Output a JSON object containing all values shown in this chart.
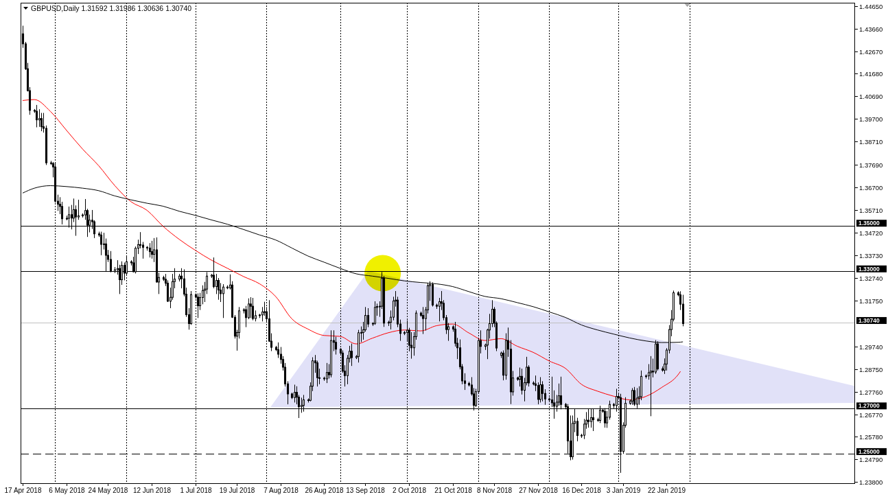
{
  "chart_data": {
    "type": "candlestick",
    "title": "GBPUSD,Daily 1.31592 1.31986 1.30636 1.30740",
    "x": [
      "2018-04-17",
      "2018-04-18",
      "2018-04-19",
      "2018-04-20",
      "2018-04-22",
      "2018-04-23",
      "2018-04-24",
      "2018-04-25",
      "2018-04-26",
      "2018-04-27",
      "2018-04-29",
      "2018-04-30",
      "2018-05-01",
      "2018-05-02",
      "2018-05-03",
      "2018-05-04",
      "2018-05-06",
      "2018-05-07",
      "2018-05-08",
      "2018-05-09",
      "2018-05-10",
      "2018-05-11",
      "2018-05-13",
      "2018-05-14",
      "2018-05-15",
      "2018-05-16",
      "2018-05-17",
      "2018-05-18",
      "2018-05-20",
      "2018-05-21",
      "2018-05-22",
      "2018-05-23",
      "2018-05-24",
      "2018-05-25",
      "2018-05-27",
      "2018-05-28",
      "2018-05-29",
      "2018-05-30",
      "2018-05-31",
      "2018-06-01",
      "2018-06-03",
      "2018-06-04",
      "2018-06-05",
      "2018-06-06",
      "2018-06-07",
      "2018-06-08",
      "2018-06-10",
      "2018-06-11",
      "2018-06-12",
      "2018-06-13",
      "2018-06-14",
      "2018-06-15",
      "2018-06-17",
      "2018-06-18",
      "2018-06-19",
      "2018-06-20",
      "2018-06-21",
      "2018-06-22",
      "2018-06-24",
      "2018-06-25",
      "2018-06-26",
      "2018-06-27",
      "2018-06-28",
      "2018-06-29",
      "2018-07-01",
      "2018-07-02",
      "2018-07-03",
      "2018-07-04",
      "2018-07-05",
      "2018-07-06",
      "2018-07-08",
      "2018-07-09",
      "2018-07-10",
      "2018-07-11",
      "2018-07-12",
      "2018-07-13",
      "2018-07-15",
      "2018-07-16",
      "2018-07-17",
      "2018-07-18",
      "2018-07-19",
      "2018-07-20",
      "2018-07-22",
      "2018-07-23",
      "2018-07-24",
      "2018-07-25",
      "2018-07-26",
      "2018-07-27",
      "2018-07-29",
      "2018-07-30",
      "2018-07-31",
      "2018-08-01",
      "2018-08-02",
      "2018-08-03",
      "2018-08-05",
      "2018-08-06",
      "2018-08-07",
      "2018-08-08",
      "2018-08-09",
      "2018-08-10",
      "2018-08-12",
      "2018-08-13",
      "2018-08-14",
      "2018-08-15",
      "2018-08-16",
      "2018-08-17",
      "2018-08-19",
      "2018-08-20",
      "2018-08-21",
      "2018-08-22",
      "2018-08-23",
      "2018-08-24",
      "2018-08-26",
      "2018-08-27",
      "2018-08-28",
      "2018-08-29",
      "2018-08-30",
      "2018-08-31",
      "2018-09-02",
      "2018-09-03",
      "2018-09-04",
      "2018-09-05",
      "2018-09-06",
      "2018-09-07",
      "2018-09-09",
      "2018-09-10",
      "2018-09-11",
      "2018-09-12",
      "2018-09-13",
      "2018-09-14",
      "2018-09-16",
      "2018-09-17",
      "2018-09-18",
      "2018-09-19",
      "2018-09-20",
      "2018-09-21",
      "2018-09-23",
      "2018-09-24",
      "2018-09-25",
      "2018-09-26",
      "2018-09-27",
      "2018-09-28",
      "2018-09-30",
      "2018-10-01",
      "2018-10-02",
      "2018-10-03",
      "2018-10-04",
      "2018-10-05",
      "2018-10-07",
      "2018-10-08",
      "2018-10-09",
      "2018-10-10",
      "2018-10-11",
      "2018-10-12",
      "2018-10-14",
      "2018-10-15",
      "2018-10-16",
      "2018-10-17",
      "2018-10-18",
      "2018-10-19",
      "2018-10-21",
      "2018-10-22",
      "2018-10-23",
      "2018-10-24",
      "2018-10-25",
      "2018-10-26",
      "2018-10-28",
      "2018-10-29",
      "2018-10-30",
      "2018-10-31",
      "2018-11-01",
      "2018-11-02",
      "2018-11-04",
      "2018-11-05",
      "2018-11-06",
      "2018-11-07",
      "2018-11-08",
      "2018-11-09",
      "2018-11-11",
      "2018-11-12",
      "2018-11-13",
      "2018-11-14",
      "2018-11-15",
      "2018-11-16",
      "2018-11-18",
      "2018-11-19",
      "2018-11-20",
      "2018-11-21",
      "2018-11-22",
      "2018-11-23",
      "2018-11-25",
      "2018-11-26",
      "2018-11-27",
      "2018-11-28",
      "2018-11-29",
      "2018-11-30",
      "2018-12-02",
      "2018-12-03",
      "2018-12-04",
      "2018-12-05",
      "2018-12-06",
      "2018-12-07",
      "2018-12-09",
      "2018-12-10",
      "2018-12-11",
      "2018-12-12",
      "2018-12-13",
      "2018-12-14",
      "2018-12-16",
      "2018-12-17",
      "2018-12-18",
      "2018-12-19",
      "2018-12-20",
      "2018-12-21",
      "2018-12-23",
      "2018-12-24",
      "2018-12-25",
      "2018-12-26",
      "2018-12-27",
      "2018-12-28",
      "2018-12-30",
      "2018-12-31",
      "2019-01-01",
      "2019-01-02",
      "2019-01-03",
      "2019-01-04",
      "2019-01-06",
      "2019-01-07",
      "2019-01-08",
      "2019-01-09",
      "2019-01-10",
      "2019-01-11",
      "2019-01-13",
      "2019-01-14",
      "2019-01-15",
      "2019-01-16",
      "2019-01-17",
      "2019-01-18",
      "2019-01-20",
      "2019-01-21",
      "2019-01-22",
      "2019-01-23",
      "2019-01-24",
      "2019-01-25",
      "2019-01-27",
      "2019-01-28",
      "2019-01-29"
    ],
    "ohlc": [
      [
        1.4343,
        1.4377,
        1.4283,
        1.4299
      ],
      [
        1.4299,
        1.4306,
        1.4186,
        1.419
      ],
      [
        1.419,
        1.4214,
        1.4092,
        1.4094
      ],
      [
        1.4094,
        1.4108,
        1.399,
        1.4008
      ],
      [
        1.4008,
        1.4012,
        1.3998,
        1.4004
      ],
      [
        1.4004,
        1.403,
        1.3935,
        1.3966
      ],
      [
        1.3966,
        1.4011,
        1.3937,
        1.3972
      ],
      [
        1.3972,
        1.3995,
        1.3918,
        1.3936
      ],
      [
        1.3936,
        1.3995,
        1.3912,
        1.3929
      ],
      [
        1.3929,
        1.394,
        1.377,
        1.3778
      ],
      [
        1.3778,
        1.3785,
        1.377,
        1.3775
      ],
      [
        1.3775,
        1.378,
        1.3716,
        1.376
      ],
      [
        1.376,
        1.3775,
        1.3605,
        1.361
      ],
      [
        1.361,
        1.3637,
        1.3569,
        1.3597
      ],
      [
        1.3597,
        1.3626,
        1.3555,
        1.3587
      ],
      [
        1.3587,
        1.3606,
        1.351,
        1.3533
      ],
      [
        1.3533,
        1.3545,
        1.3528,
        1.3535
      ],
      [
        1.3535,
        1.3585,
        1.3496,
        1.3551
      ],
      [
        1.3551,
        1.3592,
        1.3488,
        1.3536
      ],
      [
        1.3536,
        1.362,
        1.352,
        1.3573
      ],
      [
        1.3573,
        1.359,
        1.346,
        1.3541
      ],
      [
        1.3541,
        1.3615,
        1.353,
        1.3546
      ],
      [
        1.3546,
        1.3555,
        1.354,
        1.355
      ],
      [
        1.355,
        1.3618,
        1.353,
        1.3569
      ],
      [
        1.3569,
        1.3575,
        1.3455,
        1.3505
      ],
      [
        1.3505,
        1.355,
        1.3475,
        1.3527
      ],
      [
        1.3527,
        1.357,
        1.349,
        1.352
      ],
      [
        1.352,
        1.3525,
        1.345,
        1.3467
      ],
      [
        1.3467,
        1.3475,
        1.3455,
        1.3462
      ],
      [
        1.3462,
        1.3475,
        1.3375,
        1.3421
      ],
      [
        1.3421,
        1.347,
        1.34,
        1.3423
      ],
      [
        1.3423,
        1.3445,
        1.3305,
        1.3373
      ],
      [
        1.3373,
        1.3395,
        1.3345,
        1.3355
      ],
      [
        1.3355,
        1.339,
        1.33,
        1.3303
      ],
      [
        1.3303,
        1.332,
        1.3297,
        1.331
      ],
      [
        1.331,
        1.335,
        1.329,
        1.3315
      ],
      [
        1.3315,
        1.333,
        1.3205,
        1.3266
      ],
      [
        1.3266,
        1.3345,
        1.3245,
        1.3329
      ],
      [
        1.3329,
        1.334,
        1.3265,
        1.3295
      ],
      [
        1.3295,
        1.3366,
        1.329,
        1.3345
      ],
      [
        1.3345,
        1.335,
        1.333,
        1.334
      ],
      [
        1.334,
        1.3365,
        1.33,
        1.3301
      ],
      [
        1.3301,
        1.341,
        1.3295,
        1.3404
      ],
      [
        1.3404,
        1.344,
        1.338,
        1.342
      ],
      [
        1.342,
        1.3473,
        1.3405,
        1.3418
      ],
      [
        1.3418,
        1.343,
        1.336,
        1.3408
      ],
      [
        1.3408,
        1.3412,
        1.3395,
        1.3405
      ],
      [
        1.3405,
        1.3425,
        1.3365,
        1.3389
      ],
      [
        1.3389,
        1.3435,
        1.336,
        1.3377
      ],
      [
        1.3377,
        1.3447,
        1.3345,
        1.3397
      ],
      [
        1.3397,
        1.345,
        1.3255,
        1.3256
      ],
      [
        1.3256,
        1.3295,
        1.3205,
        1.3276
      ],
      [
        1.3276,
        1.3282,
        1.3262,
        1.3268
      ],
      [
        1.3268,
        1.329,
        1.324,
        1.3251
      ],
      [
        1.3251,
        1.3262,
        1.317,
        1.3172
      ],
      [
        1.3172,
        1.323,
        1.3143,
        1.3189
      ],
      [
        1.3189,
        1.329,
        1.318,
        1.3258
      ],
      [
        1.3258,
        1.3315,
        1.323,
        1.3269
      ],
      [
        1.3269,
        1.329,
        1.326,
        1.3282
      ],
      [
        1.3282,
        1.3315,
        1.323,
        1.327
      ],
      [
        1.327,
        1.331,
        1.3195,
        1.3203
      ],
      [
        1.3203,
        1.323,
        1.3105,
        1.3113
      ],
      [
        1.3113,
        1.314,
        1.3049,
        1.3074
      ],
      [
        1.3074,
        1.3215,
        1.307,
        1.3201
      ],
      [
        1.3201,
        1.3205,
        1.3185,
        1.319
      ],
      [
        1.319,
        1.3205,
        1.31,
        1.3152
      ],
      [
        1.3152,
        1.3207,
        1.3135,
        1.3188
      ],
      [
        1.3188,
        1.324,
        1.316,
        1.3219
      ],
      [
        1.3219,
        1.3255,
        1.317,
        1.3225
      ],
      [
        1.3225,
        1.3298,
        1.3205,
        1.3282
      ],
      [
        1.3282,
        1.329,
        1.3275,
        1.3286
      ],
      [
        1.3286,
        1.3362,
        1.323,
        1.3236
      ],
      [
        1.3236,
        1.329,
        1.3205,
        1.3263
      ],
      [
        1.3263,
        1.3272,
        1.318,
        1.3221
      ],
      [
        1.3221,
        1.325,
        1.317,
        1.3205
      ],
      [
        1.3205,
        1.3245,
        1.31,
        1.3234
      ],
      [
        1.3234,
        1.324,
        1.3226,
        1.323
      ],
      [
        1.323,
        1.3288,
        1.3225,
        1.3243
      ],
      [
        1.3243,
        1.3258,
        1.31,
        1.3102
      ],
      [
        1.3102,
        1.311,
        1.301,
        1.3019
      ],
      [
        1.3019,
        1.3045,
        1.2957,
        1.3035
      ],
      [
        1.3035,
        1.3145,
        1.301,
        1.313
      ],
      [
        1.313,
        1.314,
        1.312,
        1.3135
      ],
      [
        1.3135,
        1.315,
        1.306,
        1.31
      ],
      [
        1.31,
        1.3183,
        1.3095,
        1.316
      ],
      [
        1.316,
        1.3188,
        1.31,
        1.315
      ],
      [
        1.315,
        1.3185,
        1.309,
        1.3096
      ],
      [
        1.3096,
        1.313,
        1.3085,
        1.3109
      ],
      [
        1.3109,
        1.3115,
        1.31,
        1.3112
      ],
      [
        1.3112,
        1.3145,
        1.3085,
        1.3125
      ],
      [
        1.3125,
        1.3168,
        1.311,
        1.3126
      ],
      [
        1.3126,
        1.3145,
        1.308,
        1.3095
      ],
      [
        1.3095,
        1.3175,
        1.2995,
        1.2997
      ],
      [
        1.2997,
        1.303,
        1.2955,
        1.297
      ],
      [
        1.297,
        1.2975,
        1.2955,
        1.296
      ],
      [
        1.296,
        1.299,
        1.2925,
        1.294
      ],
      [
        1.294,
        1.297,
        1.29,
        1.2917
      ],
      [
        1.2917,
        1.293,
        1.287,
        1.2883
      ],
      [
        1.2883,
        1.29,
        1.28,
        1.281
      ],
      [
        1.281,
        1.282,
        1.2722,
        1.2766
      ],
      [
        1.2766,
        1.277,
        1.2745,
        1.275
      ],
      [
        1.275,
        1.2805,
        1.273,
        1.2773
      ],
      [
        1.2773,
        1.2798,
        1.2722,
        1.2752
      ],
      [
        1.2752,
        1.276,
        1.2662,
        1.271
      ],
      [
        1.271,
        1.2748,
        1.2685,
        1.2716
      ],
      [
        1.2716,
        1.276,
        1.269,
        1.274
      ],
      [
        1.274,
        1.2745,
        1.273,
        1.2738
      ],
      [
        1.2738,
        1.2815,
        1.2735,
        1.28
      ],
      [
        1.28,
        1.2925,
        1.278,
        1.2911
      ],
      [
        1.2911,
        1.2935,
        1.286,
        1.2902
      ],
      [
        1.2902,
        1.291,
        1.28,
        1.2837
      ],
      [
        1.2837,
        1.2875,
        1.281,
        1.2835
      ],
      [
        1.2835,
        1.284,
        1.2825,
        1.2832
      ],
      [
        1.2832,
        1.29,
        1.2815,
        1.286
      ],
      [
        1.286,
        1.2895,
        1.2835,
        1.285
      ],
      [
        1.285,
        1.3043,
        1.284,
        1.3
      ],
      [
        1.3,
        1.3043,
        1.2955,
        1.2992
      ],
      [
        1.2992,
        1.3015,
        1.294,
        1.2962
      ],
      [
        1.2962,
        1.2965,
        1.294,
        1.2945
      ],
      [
        1.2945,
        1.2955,
        1.286,
        1.2866
      ],
      [
        1.2866,
        1.289,
        1.28,
        1.2846
      ],
      [
        1.2846,
        1.2935,
        1.281,
        1.2922
      ],
      [
        1.2922,
        1.2975,
        1.2905,
        1.2953
      ],
      [
        1.2953,
        1.2985,
        1.289,
        1.2925
      ],
      [
        1.2925,
        1.2935,
        1.292,
        1.293
      ],
      [
        1.293,
        1.3045,
        1.2905,
        1.3034
      ],
      [
        1.3034,
        1.306,
        1.2995,
        1.3035
      ],
      [
        1.3035,
        1.308,
        1.3005,
        1.3047
      ],
      [
        1.3047,
        1.3145,
        1.304,
        1.311
      ],
      [
        1.311,
        1.314,
        1.306,
        1.3072
      ],
      [
        1.3072,
        1.3078,
        1.3065,
        1.3075
      ],
      [
        1.3075,
        1.317,
        1.307,
        1.3145
      ],
      [
        1.3145,
        1.316,
        1.311,
        1.3149
      ],
      [
        1.3149,
        1.317,
        1.3105,
        1.315
      ],
      [
        1.315,
        1.3298,
        1.314,
        1.3273
      ],
      [
        1.3273,
        1.3281,
        1.3061,
        1.3076
      ],
      [
        1.3076,
        1.3085,
        1.3065,
        1.308
      ],
      [
        1.308,
        1.313,
        1.305,
        1.3102
      ],
      [
        1.3102,
        1.319,
        1.309,
        1.3173
      ],
      [
        1.3173,
        1.3215,
        1.315,
        1.3177
      ],
      [
        1.3177,
        1.319,
        1.306,
        1.3072
      ],
      [
        1.3072,
        1.309,
        1.3,
        1.3031
      ],
      [
        1.3031,
        1.304,
        1.3025,
        1.3035
      ],
      [
        1.3035,
        1.3087,
        1.3,
        1.3045
      ],
      [
        1.3045,
        1.3054,
        1.2954,
        1.2979
      ],
      [
        1.2979,
        1.3035,
        1.2922,
        1.2968
      ],
      [
        1.2968,
        1.3035,
        1.2935,
        1.3017
      ],
      [
        1.3017,
        1.313,
        1.3005,
        1.312
      ],
      [
        1.312,
        1.3125,
        1.3105,
        1.311
      ],
      [
        1.311,
        1.3145,
        1.303,
        1.3096
      ],
      [
        1.3096,
        1.3145,
        1.3045,
        1.3134
      ],
      [
        1.3134,
        1.325,
        1.312,
        1.324
      ],
      [
        1.324,
        1.3258,
        1.3175,
        1.3245
      ],
      [
        1.3245,
        1.3253,
        1.315,
        1.3155
      ],
      [
        1.3155,
        1.316,
        1.314,
        1.315
      ],
      [
        1.315,
        1.3185,
        1.3085,
        1.317
      ],
      [
        1.317,
        1.3215,
        1.3135,
        1.3163
      ],
      [
        1.3163,
        1.3175,
        1.309,
        1.31
      ],
      [
        1.31,
        1.311,
        1.303,
        1.3048
      ],
      [
        1.3048,
        1.3075,
        1.3,
        1.306
      ],
      [
        1.306,
        1.3065,
        1.304,
        1.305
      ],
      [
        1.305,
        1.308,
        1.2975,
        1.2988
      ],
      [
        1.2988,
        1.301,
        1.292,
        1.2968
      ],
      [
        1.2968,
        1.3003,
        1.2875,
        1.2885
      ],
      [
        1.2885,
        1.2895,
        1.281,
        1.2823
      ],
      [
        1.2823,
        1.2855,
        1.2785,
        1.2812
      ],
      [
        1.2812,
        1.2818,
        1.28,
        1.2805
      ],
      [
        1.2805,
        1.2838,
        1.276,
        1.2766
      ],
      [
        1.2766,
        1.279,
        1.2695,
        1.2716
      ],
      [
        1.2716,
        1.2787,
        1.271,
        1.2776
      ],
      [
        1.2776,
        1.3009,
        1.277,
        1.3
      ],
      [
        1.3,
        1.3043,
        1.2945,
        1.2974
      ],
      [
        1.2974,
        1.2985,
        1.296,
        1.298
      ],
      [
        1.298,
        1.305,
        1.292,
        1.3046
      ],
      [
        1.3046,
        1.3115,
        1.301,
        1.3074
      ],
      [
        1.3074,
        1.3175,
        1.306,
        1.3137
      ],
      [
        1.3137,
        1.3145,
        1.306,
        1.3076
      ],
      [
        1.3076,
        1.3082,
        1.2955,
        1.2967
      ],
      [
        1.2935,
        1.295,
        1.2925,
        1.2945
      ],
      [
        1.2945,
        1.2955,
        1.2827,
        1.2848
      ],
      [
        1.2848,
        1.303,
        1.283,
        1.3
      ],
      [
        1.3,
        1.3055,
        1.293,
        1.2962
      ],
      [
        1.2962,
        1.3,
        1.2723,
        1.2775
      ],
      [
        1.2775,
        1.2865,
        1.276,
        1.2836
      ],
      [
        1.2836,
        1.284,
        1.2825,
        1.283
      ],
      [
        1.283,
        1.288,
        1.28,
        1.2843
      ],
      [
        1.2843,
        1.2875,
        1.2765,
        1.2782
      ],
      [
        1.2782,
        1.2835,
        1.2735,
        1.2815
      ],
      [
        1.2815,
        1.2927,
        1.2805,
        1.2883
      ],
      [
        1.2883,
        1.289,
        1.28,
        1.2814
      ],
      [
        1.2814,
        1.282,
        1.2805,
        1.281
      ],
      [
        1.281,
        1.2845,
        1.278,
        1.2803
      ],
      [
        1.2803,
        1.2815,
        1.2722,
        1.2742
      ],
      [
        1.2742,
        1.2838,
        1.273,
        1.2806
      ],
      [
        1.2806,
        1.282,
        1.2735,
        1.2768
      ],
      [
        1.2768,
        1.2785,
        1.272,
        1.2744
      ],
      [
        1.2744,
        1.275,
        1.2735,
        1.274
      ],
      [
        1.274,
        1.284,
        1.271,
        1.2727
      ],
      [
        1.2727,
        1.278,
        1.2659,
        1.2712
      ],
      [
        1.2712,
        1.276,
        1.269,
        1.273
      ],
      [
        1.273,
        1.281,
        1.2715,
        1.2758
      ],
      [
        1.2758,
        1.284,
        1.27,
        1.272
      ],
      [
        1.272,
        1.2725,
        1.27,
        1.271
      ],
      [
        1.271,
        1.272,
        1.2507,
        1.256
      ],
      [
        1.256,
        1.267,
        1.2477,
        1.2491
      ],
      [
        1.2491,
        1.267,
        1.248,
        1.2637
      ],
      [
        1.2637,
        1.27,
        1.26,
        1.2646
      ],
      [
        1.2646,
        1.266,
        1.256,
        1.2584
      ],
      [
        1.2584,
        1.259,
        1.2575,
        1.2585
      ],
      [
        1.2585,
        1.2655,
        1.257,
        1.2634
      ],
      [
        1.2634,
        1.2685,
        1.2615,
        1.2651
      ],
      [
        1.2651,
        1.27,
        1.262,
        1.2645
      ],
      [
        1.2645,
        1.27,
        1.262,
        1.2662
      ],
      [
        1.2662,
        1.27,
        1.2605,
        1.2653
      ],
      [
        1.2653,
        1.266,
        1.2645,
        1.265
      ],
      [
        1.265,
        1.2713,
        1.264,
        1.2695
      ],
      [
        1.2695,
        1.27,
        1.2685,
        1.269
      ],
      [
        1.269,
        1.2702,
        1.262,
        1.2639
      ],
      [
        1.2639,
        1.269,
        1.2619,
        1.2664
      ],
      [
        1.2664,
        1.2735,
        1.2655,
        1.272
      ],
      [
        1.272,
        1.2725,
        1.2705,
        1.2715
      ],
      [
        1.2715,
        1.2787,
        1.269,
        1.2755
      ],
      [
        1.2755,
        1.2765,
        1.2745,
        1.275
      ],
      [
        1.275,
        1.2765,
        1.2422,
        1.2514
      ],
      [
        1.2514,
        1.264,
        1.2505,
        1.2629
      ],
      [
        1.2629,
        1.275,
        1.262,
        1.2725
      ],
      [
        1.2725,
        1.274,
        1.272,
        1.2735
      ],
      [
        1.2735,
        1.279,
        1.272,
        1.2781
      ],
      [
        1.2781,
        1.2795,
        1.2715,
        1.2721
      ],
      [
        1.2721,
        1.279,
        1.2705,
        1.2748
      ],
      [
        1.2748,
        1.2798,
        1.272,
        1.2754
      ],
      [
        1.2754,
        1.2867,
        1.274,
        1.2843
      ],
      [
        1.2843,
        1.285,
        1.2835,
        1.2845
      ],
      [
        1.2845,
        1.2895,
        1.283,
        1.2859
      ],
      [
        1.2859,
        1.293,
        1.267,
        1.2866
      ],
      [
        1.2866,
        1.2919,
        1.284,
        1.2862
      ],
      [
        1.2862,
        1.3,
        1.2855,
        1.2985
      ],
      [
        1.2985,
        1.2995,
        1.287,
        1.2876
      ],
      [
        1.2876,
        1.2885,
        1.2865,
        1.287
      ],
      [
        1.287,
        1.292,
        1.2855,
        1.2897
      ],
      [
        1.2897,
        1.2965,
        1.287,
        1.2958
      ],
      [
        1.2958,
        1.3066,
        1.2945,
        1.3048
      ],
      [
        1.3048,
        1.3132,
        1.302,
        1.3093
      ],
      [
        1.3093,
        1.3217,
        1.3085,
        1.3209
      ],
      [
        1.3209,
        1.3214,
        1.3195,
        1.32
      ],
      [
        1.32,
        1.3214,
        1.3135,
        1.3159
      ],
      [
        1.31592,
        1.31986,
        1.30636,
        1.3074
      ]
    ],
    "series": [
      {
        "type": "line",
        "color": "#ff0000",
        "x": [
          "2018-04-17",
          "2018-04-22",
          "2018-04-29",
          "2018-05-06",
          "2018-05-13",
          "2018-05-20",
          "2018-05-27",
          "2018-06-03",
          "2018-06-10",
          "2018-06-17",
          "2018-06-24",
          "2018-07-01",
          "2018-07-08",
          "2018-07-15",
          "2018-07-22",
          "2018-07-29",
          "2018-08-05",
          "2018-08-12",
          "2018-08-19",
          "2018-08-26",
          "2018-09-02",
          "2018-09-09",
          "2018-09-16",
          "2018-09-23",
          "2018-09-30",
          "2018-10-07",
          "2018-10-14",
          "2018-10-21",
          "2018-10-28",
          "2018-11-04",
          "2018-11-11",
          "2018-11-18",
          "2018-11-25",
          "2018-12-02",
          "2018-12-09",
          "2018-12-16",
          "2018-12-23",
          "2018-12-30",
          "2019-01-06",
          "2019-01-13",
          "2019-01-20",
          "2019-01-27",
          "2019-01-28"
        ],
        "values": [
          1.4051,
          1.4055,
          1.4003,
          1.392,
          1.3838,
          1.3765,
          1.3678,
          1.3608,
          1.357,
          1.35,
          1.3443,
          1.3395,
          1.3352,
          1.3316,
          1.328,
          1.3248,
          1.3192,
          1.3095,
          1.305,
          1.3022,
          1.3018,
          1.2985,
          1.301,
          1.3034,
          1.3046,
          1.3042,
          1.3065,
          1.3072,
          1.3033,
          1.3,
          1.3008,
          1.2975,
          1.2948,
          1.291,
          1.2878,
          1.2808,
          1.2778,
          1.2756,
          1.274,
          1.2755,
          1.2795,
          1.285,
          1.2864
        ]
      },
      {
        "type": "line",
        "color": "#000000",
        "x": [
          "2018-04-17",
          "2018-04-22",
          "2018-04-29",
          "2018-05-06",
          "2018-05-13",
          "2018-05-20",
          "2018-05-27",
          "2018-06-03",
          "2018-06-10",
          "2018-06-17",
          "2018-06-24",
          "2018-07-01",
          "2018-07-08",
          "2018-07-15",
          "2018-07-22",
          "2018-07-29",
          "2018-08-05",
          "2018-08-12",
          "2018-08-19",
          "2018-08-26",
          "2018-09-02",
          "2018-09-09",
          "2018-09-16",
          "2018-09-23",
          "2018-09-30",
          "2018-10-07",
          "2018-10-14",
          "2018-10-21",
          "2018-10-28",
          "2018-11-04",
          "2018-11-11",
          "2018-11-18",
          "2018-11-25",
          "2018-12-02",
          "2018-12-09",
          "2018-12-16",
          "2018-12-23",
          "2018-12-30",
          "2019-01-06",
          "2019-01-13",
          "2019-01-20",
          "2019-01-27",
          "2019-01-29"
        ],
        "values": [
          1.3646,
          1.3667,
          1.3678,
          1.3674,
          1.3667,
          1.3656,
          1.3633,
          1.3616,
          1.3601,
          1.3588,
          1.3566,
          1.3548,
          1.3528,
          1.3509,
          1.3486,
          1.3462,
          1.344,
          1.3405,
          1.337,
          1.3343,
          1.3316,
          1.3292,
          1.3282,
          1.3272,
          1.3261,
          1.3254,
          1.3248,
          1.3236,
          1.3214,
          1.3193,
          1.3183,
          1.3166,
          1.3148,
          1.3125,
          1.3101,
          1.3068,
          1.3046,
          1.3028,
          1.3011,
          1.2998,
          1.2991,
          1.2992,
          1.2994
        ]
      }
    ],
    "xlim": [
      "2018-04-16",
      "2019-04-14"
    ],
    "xticks": [
      {
        "value": "2018-04-17",
        "label": "17 Apr 2018"
      },
      {
        "value": "2018-05-06",
        "label": "6 May 2018"
      },
      {
        "value": "2018-05-24",
        "label": "24 May 2018"
      },
      {
        "value": "2018-06-12",
        "label": "12 Jun 2018"
      },
      {
        "value": "2018-07-01",
        "label": "1 Jul 2018"
      },
      {
        "value": "2018-07-19",
        "label": "19 Jul 2018"
      },
      {
        "value": "2018-08-07",
        "label": "7 Aug 2018"
      },
      {
        "value": "2018-08-26",
        "label": "26 Aug 2018"
      },
      {
        "value": "2018-09-13",
        "label": "13 Sep 2018"
      },
      {
        "value": "2018-10-02",
        "label": "2 Oct 2018"
      },
      {
        "value": "2018-10-21",
        "label": "21 Oct 2018"
      },
      {
        "value": "2018-11-08",
        "label": "8 Nov 2018"
      },
      {
        "value": "2018-11-27",
        "label": "27 Nov 2018"
      },
      {
        "value": "2018-12-16",
        "label": "16 Dec 2018"
      },
      {
        "value": "2019-01-03",
        "label": "3 Jan 2019"
      },
      {
        "value": "2019-01-22",
        "label": "22 Jan 2019"
      }
    ],
    "ylim": [
      1.2372,
      1.4479
    ],
    "yticks": [
      {
        "value": 1.4465,
        "label": "1.44650"
      },
      {
        "value": 1.4366,
        "label": "1.43660"
      },
      {
        "value": 1.4267,
        "label": "1.42670"
      },
      {
        "value": 1.4168,
        "label": "1.41680"
      },
      {
        "value": 1.4069,
        "label": "1.40690"
      },
      {
        "value": 1.397,
        "label": "1.39700"
      },
      {
        "value": 1.3871,
        "label": "1.38710"
      },
      {
        "value": 1.3769,
        "label": "1.37690"
      },
      {
        "value": 1.367,
        "label": "1.36700"
      },
      {
        "value": 1.3571,
        "label": "1.35710"
      },
      {
        "value": 1.3472,
        "label": "1.34720"
      },
      {
        "value": 1.3373,
        "label": "1.33730"
      },
      {
        "value": 1.3274,
        "label": "1.32740"
      },
      {
        "value": 1.3175,
        "label": "1.31750"
      },
      {
        "value": 1.2974,
        "label": "1.29740"
      },
      {
        "value": 1.2875,
        "label": "1.28750"
      },
      {
        "value": 1.2776,
        "label": "1.27760"
      },
      {
        "value": 1.2677,
        "label": "1.26770"
      },
      {
        "value": 1.2578,
        "label": "1.25780"
      },
      {
        "value": 1.2479,
        "label": "1.24790"
      },
      {
        "value": 1.238,
        "label": "1.23800"
      }
    ],
    "ref_lines": [
      {
        "axis": "y",
        "value": 1.35,
        "label": "1.35000",
        "color": "#000000",
        "line_style": "solid"
      },
      {
        "axis": "y",
        "value": 1.33,
        "label": "1.33000",
        "color": "#000000",
        "line_style": "solid"
      },
      {
        "axis": "y",
        "value": 1.3074,
        "label": "1.30740",
        "color": "#c0c0c0",
        "line_style": "solid"
      },
      {
        "axis": "y",
        "value": 1.27,
        "label": "1.27000",
        "color": "#000000",
        "line_style": "solid"
      },
      {
        "axis": "y",
        "value": 1.25,
        "label": "1.25000",
        "color": "#000000",
        "line_style": "dashed"
      },
      {
        "axis": "x",
        "value": "2018-05-01",
        "color": "#000000",
        "line_style": "dotted"
      },
      {
        "axis": "x",
        "value": "2018-06-01",
        "color": "#000000",
        "line_style": "dotted"
      },
      {
        "axis": "x",
        "value": "2018-07-01",
        "color": "#000000",
        "line_style": "dotted"
      },
      {
        "axis": "x",
        "value": "2018-08-01",
        "color": "#000000",
        "line_style": "dotted"
      },
      {
        "axis": "x",
        "value": "2018-09-02",
        "color": "#000000",
        "line_style": "dotted"
      },
      {
        "axis": "x",
        "value": "2018-10-01",
        "color": "#000000",
        "line_style": "dotted"
      },
      {
        "axis": "x",
        "value": "2018-11-01",
        "color": "#000000",
        "line_style": "dotted"
      },
      {
        "axis": "x",
        "value": "2018-12-02",
        "color": "#000000",
        "line_style": "dotted"
      },
      {
        "axis": "x",
        "value": "2019-01-01",
        "color": "#000000",
        "line_style": "dotted"
      },
      {
        "axis": "x",
        "value": "2019-02-01",
        "color": "#000000",
        "line_style": "dotted"
      }
    ]
  }
}
